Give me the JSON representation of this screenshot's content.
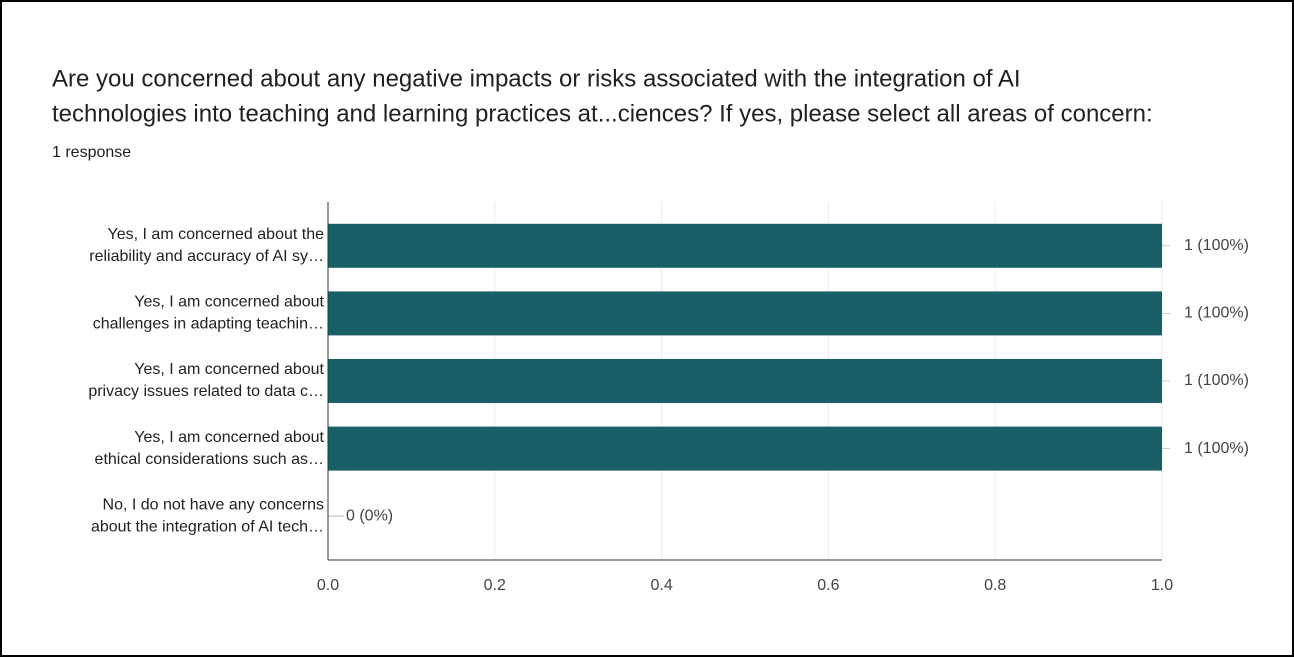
{
  "chart_data": {
    "type": "bar",
    "orientation": "horizontal",
    "title": [
      "Are you concerned about any negative impacts or risks associated with the integration of AI",
      "technologies into teaching and learning practices at...ciences? If yes, please select all areas of concern:"
    ],
    "subtitle": "1 response",
    "categories": [
      [
        "Yes, I am concerned about the",
        "reliability and accuracy of AI sy…"
      ],
      [
        "Yes, I am concerned about",
        "challenges in adapting teachin…"
      ],
      [
        "Yes, I am concerned about",
        "privacy issues related to data c…"
      ],
      [
        "Yes, I am concerned about",
        "ethical considerations such as…"
      ],
      [
        "No, I do not have any concerns",
        "about the integration of AI tech…"
      ]
    ],
    "values": [
      1,
      1,
      1,
      1,
      0
    ],
    "value_labels": [
      "1 (100%)",
      "1 (100%)",
      "1 (100%)",
      "1 (100%)",
      "0 (0%)"
    ],
    "color": "#185f66",
    "xlim": [
      0,
      1
    ],
    "xticks": [
      {
        "value": 0,
        "label": "0.0"
      },
      0.2,
      0.4,
      0.6,
      0.8,
      {
        "value": 1,
        "label": "1.0"
      }
    ],
    "grid": true
  }
}
